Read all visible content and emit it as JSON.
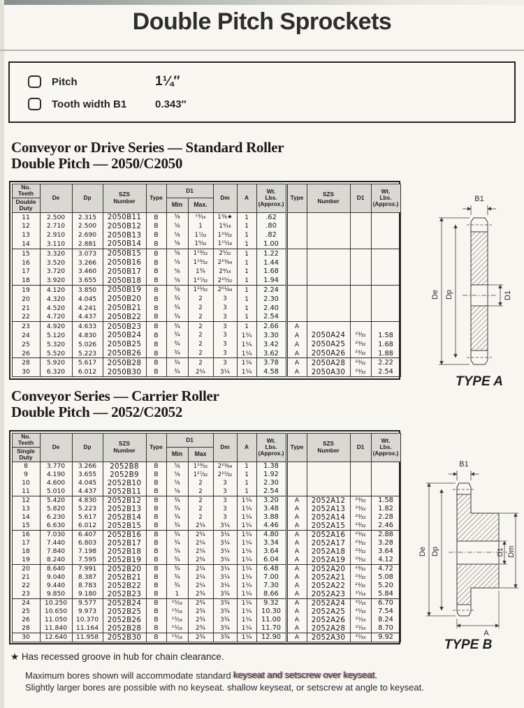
{
  "page_title": "Double Pitch Sprockets",
  "specs": {
    "pitch_label": "Pitch",
    "pitch_value": "1¼″",
    "tooth_label": "Tooth width B1",
    "tooth_value": "0.343″"
  },
  "diagram_labels": {
    "b1": "B1",
    "de": "De",
    "dp": "Dp",
    "d1": "D1",
    "dm": "Dm",
    "a": "A",
    "type_a": "TYPE A",
    "type_b": "TYPE B"
  },
  "footnotes": {
    "star": "★",
    "star_note": "Has recessed groove in hub for chain clearance.",
    "note1_a": "Maximum bores shown will accommodate standard ",
    "note1_b": "keyseat and setscrew over keyseat.",
    "note2": "Slightly larger bores are possible with no keyseat. shallow keyseat, or setscrew at angle to keyseat."
  },
  "sections": [
    {
      "heading1": "Conveyor or Drive Series — Standard Roller",
      "heading2": "Double Pitch — 2050/C2050",
      "headers": {
        "no": "No.",
        "teeth": "Teeth",
        "duty": "Double Duty",
        "de": "De",
        "dp": "Dp",
        "szs": "SZS Number",
        "type": "Type",
        "d1": "D1",
        "min": "Min",
        "max": "Max.",
        "dm": "Dm",
        "a": "A",
        "wt": "Wt. Lbs. (Approx.)",
        "type2": "Type",
        "szs2": "SZS Number",
        "d12": "D1",
        "wt2": "Wt. Lbs. (Approx.)"
      },
      "groups": [
        [
          [
            "11",
            "2.500",
            "2.315",
            "2050B11",
            "B",
            "⅝",
            "¹³⁄₁₆",
            "1⅜★",
            "1",
            ".62",
            "",
            "",
            "",
            ""
          ],
          [
            "12",
            "2.710",
            "2.500",
            "2050B12",
            "B",
            "⅝",
            "1",
            "1⁹⁄₁₆",
            "1",
            ".80",
            "",
            "",
            "",
            ""
          ],
          [
            "13",
            "2.910",
            "2.690",
            "2050B13",
            "B",
            "⅝",
            "1⁷⁄₃₂",
            "1²³⁄₃₂",
            "1",
            ".82",
            "",
            "",
            "",
            ""
          ],
          [
            "14",
            "3.110",
            "2.881",
            "2050B14",
            "B",
            "⅝",
            "1⁹⁄₃₂",
            "1¹⁵⁄₁₆",
            "1",
            "1.00",
            "",
            "",
            "",
            ""
          ]
        ],
        [
          [
            "15",
            "3.320",
            "3.073",
            "2050B15",
            "B",
            "⅝",
            "1¹³⁄₃₂",
            "2⁵⁄₃₂",
            "1",
            "1.22",
            "",
            "",
            "",
            ""
          ],
          [
            "16",
            "3.520",
            "3.266",
            "2050B16",
            "B",
            "⅝",
            "1¹⁹⁄₃₂",
            "2²³⁄₆₄",
            "1",
            "1.44",
            "",
            "",
            "",
            ""
          ],
          [
            "17",
            "3.720",
            "3.460",
            "2050B17",
            "B",
            "⅝",
            "1¾",
            "2⁹⁄₁₆",
            "1",
            "1.68",
            "",
            "",
            "",
            ""
          ],
          [
            "18",
            "3.920",
            "3.655",
            "2050B18",
            "B",
            "⅝",
            "1²⁷⁄₃₂",
            "2²⁵⁄₃₂",
            "1",
            "1.94",
            "",
            "",
            "",
            ""
          ]
        ],
        [
          [
            "19",
            "4.120",
            "3.850",
            "2050B19",
            "B",
            "⅝",
            "1³¹⁄₃₂",
            "2⁶¹⁄₆₄",
            "1",
            "2.24",
            "",
            "",
            "",
            ""
          ],
          [
            "20",
            "4.320",
            "4.045",
            "2050B20",
            "B",
            "¾",
            "2",
            "3",
            "1",
            "2.30",
            "",
            "",
            "",
            ""
          ],
          [
            "21",
            "4.520",
            "4.241",
            "2050B21",
            "B",
            "¾",
            "2",
            "3",
            "1",
            "2.40",
            "",
            "",
            "",
            ""
          ],
          [
            "22",
            "4.720",
            "4.437",
            "2050B22",
            "B",
            "¾",
            "2",
            "3",
            "1",
            "2.54",
            "",
            "",
            "",
            ""
          ]
        ],
        [
          [
            "23",
            "4.920",
            "4.633",
            "2050B23",
            "B",
            "¾",
            "2",
            "3",
            "1",
            "2.66",
            "A",
            "",
            "",
            ""
          ],
          [
            "24",
            "5.120",
            "4.830",
            "2050B24",
            "B",
            "¾",
            "2",
            "3",
            "1¼",
            "3.30",
            "A",
            "2050A24",
            "²³⁄₃₂",
            "1.58"
          ],
          [
            "25",
            "5.320",
            "5.026",
            "2050B25",
            "B",
            "¾",
            "2",
            "3",
            "1¼",
            "3.42",
            "A",
            "2050A25",
            "²³⁄₃₂",
            "1.68"
          ],
          [
            "26",
            "5.520",
            "5.223",
            "2050B26",
            "B",
            "¾",
            "2",
            "3",
            "1¼",
            "3.62",
            "A",
            "2050A26",
            "²³⁄₃₂",
            "1.88"
          ]
        ],
        [
          [
            "28",
            "5.920",
            "5.617",
            "2050B28",
            "B",
            "¾",
            "2",
            "3",
            "1¼",
            "3.78",
            "A",
            "2050A28",
            "²³⁄₃₂",
            "2.22"
          ],
          [
            "30",
            "6.320",
            "6.012",
            "2050B30",
            "B",
            "¾",
            "2¼",
            "3¼",
            "1¼",
            "4.58",
            "A",
            "2050A30",
            "²³⁄₃₂",
            "2.54"
          ]
        ]
      ]
    },
    {
      "heading1": "Conveyor Series — Carrier Roller",
      "heading2": "Double Pitch — 2052/C2052",
      "headers": {
        "no": "No.",
        "teeth": "Teeth",
        "duty": "Single Duty",
        "de": "De",
        "dp": "Dp",
        "szs": "SZS Number",
        "type": "Type",
        "d1": "D1",
        "min": "Min",
        "max": "Max",
        "dm": "Dm",
        "a": "A",
        "wt": "Wt. Lbs. (Approx.)",
        "type2": "Type",
        "szs2": "SZS Number",
        "d12": "D1",
        "wt2": "Wt. Lbs. (Approx.)"
      },
      "groups": [
        [
          [
            "8",
            "3.770",
            "3.266",
            "2052B8",
            "B",
            "⅝",
            "1¹⁹⁄₃₂",
            "2²³⁄₆₄",
            "1",
            "1.38",
            "",
            "",
            "",
            ""
          ],
          [
            "9",
            "4.190",
            "3.655",
            "2052B9",
            "B",
            "⅝",
            "1²⁷⁄₃₂",
            "2²⁵⁄₃₂",
            "1",
            "1.92",
            "",
            "",
            "",
            ""
          ],
          [
            "10",
            "4.600",
            "4.045",
            "2052B10",
            "B",
            "⅝",
            "2",
            "3",
            "1",
            "2.30",
            "",
            "",
            "",
            ""
          ],
          [
            "11",
            "5.010",
            "4.437",
            "2052B11",
            "B",
            "⅝",
            "2",
            "3",
            "1",
            "2.54",
            "",
            "",
            "",
            ""
          ]
        ],
        [
          [
            "12",
            "5.420",
            "4.830",
            "2052B12",
            "B",
            "¾",
            "2",
            "3",
            "1¼",
            "3.20",
            "A",
            "2052A12",
            "²³⁄₃₂",
            "1.58"
          ],
          [
            "13",
            "5.820",
            "5.223",
            "2052B13",
            "B",
            "¾",
            "2",
            "3",
            "1¼",
            "3.48",
            "A",
            "2052A13",
            "²³⁄₃₂",
            "1.82"
          ],
          [
            "14",
            "6.230",
            "5.617",
            "2052B14",
            "B",
            "¾",
            "2",
            "3",
            "1¼",
            "3.88",
            "A",
            "2052A14",
            "²³⁄₃₂",
            "2.28"
          ],
          [
            "15",
            "6.630",
            "6.012",
            "2052B15",
            "B",
            "¾",
            "2¼",
            "3¼",
            "1¼",
            "4.46",
            "A",
            "2052A15",
            "²³⁄₃₂",
            "2.46"
          ]
        ],
        [
          [
            "16",
            "7.030",
            "6.407",
            "2052B16",
            "B",
            "¾",
            "2¼",
            "3¼",
            "1¼",
            "4.80",
            "A",
            "2052A16",
            "²³⁄₃₂",
            "2.88"
          ],
          [
            "17",
            "7.440",
            "6.803",
            "2052B17",
            "B",
            "¾",
            "2¼",
            "3¼",
            "1¼",
            "3.34",
            "A",
            "2052A17",
            "²³⁄₃₂",
            "3.28"
          ],
          [
            "18",
            "7.840",
            "7.198",
            "2052B18",
            "B",
            "¾",
            "2¼",
            "3¼",
            "1¼",
            "3.64",
            "A",
            "2052A18",
            "²³⁄₃₂",
            "3.64"
          ],
          [
            "19",
            "8.240",
            "7.595",
            "2052B19",
            "B",
            "¾",
            "2¼",
            "3¼",
            "1¼",
            "6.04",
            "A",
            "2052A19",
            "²³⁄₃₂",
            "4.12"
          ]
        ],
        [
          [
            "20",
            "8.640",
            "7.991",
            "2052B20",
            "B",
            "¾",
            "2¼",
            "3¼",
            "1¼",
            "6.48",
            "A",
            "2052A20",
            "²³⁄₃₂",
            "4.72"
          ],
          [
            "21",
            "9.040",
            "8.387",
            "2052B21",
            "B",
            "¾",
            "2¼",
            "3¼",
            "1¼",
            "7.00",
            "A",
            "2052A21",
            "²³⁄₃₂",
            "5.08"
          ],
          [
            "22",
            "9.440",
            "8.783",
            "2052B22",
            "B",
            "¾",
            "2¼",
            "3¼",
            "1¼",
            "7.30",
            "A",
            "2052A22",
            "²³⁄₃₂",
            "5.20"
          ],
          [
            "23",
            "9.850",
            "9.180",
            "2052B23",
            "B",
            "1",
            "2¾",
            "3¾",
            "1¼",
            "8.66",
            "A",
            "2052A23",
            "¹⁵⁄₁₆",
            "5.84"
          ]
        ],
        [
          [
            "24",
            "10.250",
            "9.577",
            "2052B24",
            "B",
            "¹⁵⁄₁₆",
            "2¾",
            "3¾",
            "1¼",
            "9.32",
            "A",
            "2052A24",
            "¹⁵⁄₁₆",
            "6.70"
          ],
          [
            "25",
            "10.650",
            "9.973",
            "2052B25",
            "B",
            "¹⁵⁄₁₆",
            "2¾",
            "3¾",
            "1¼",
            "10.30",
            "A",
            "2052A25",
            "¹⁵⁄₁₆",
            "7.54"
          ],
          [
            "26",
            "11.050",
            "10.370",
            "2052B26",
            "B",
            "¹⁵⁄₁₆",
            "2¾",
            "3¾",
            "1¼",
            "11.00",
            "A",
            "2052A26",
            "¹⁵⁄₁₆",
            "8.24"
          ],
          [
            "28",
            "11.840",
            "11.164",
            "2052B28",
            "B",
            "¹⁵⁄₁₆",
            "2¾",
            "3¾",
            "1¼",
            "11.70",
            "A",
            "2052A28",
            "¹⁵⁄₁₆",
            "8.70"
          ]
        ],
        [
          [
            "30",
            "12.640",
            "11.958",
            "2052B30",
            "B",
            "¹⁵⁄₁₆",
            "2¾",
            "3¾",
            "1¼",
            "12.90",
            "A",
            "2052A30",
            "¹⁵⁄₁₆",
            "9.92"
          ]
        ]
      ]
    }
  ]
}
